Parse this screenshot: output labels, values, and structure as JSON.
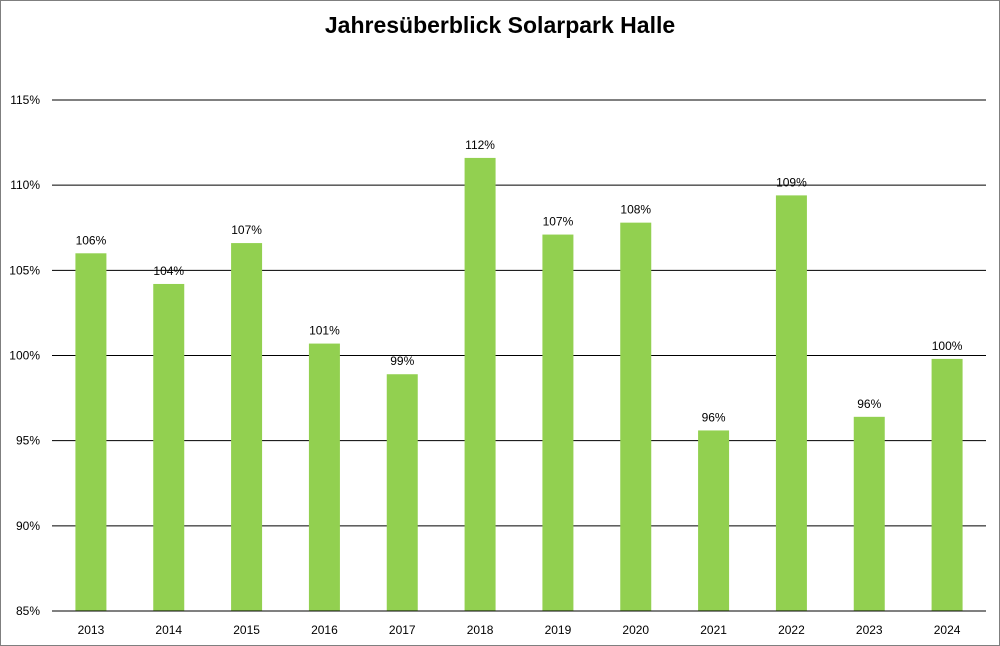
{
  "chart_data": {
    "type": "bar",
    "title": "Jahresüberblick Solarpark Halle",
    "xlabel": "",
    "ylabel": "",
    "categories": [
      "2013",
      "2014",
      "2015",
      "2016",
      "2017",
      "2018",
      "2019",
      "2020",
      "2021",
      "2022",
      "2023",
      "2024"
    ],
    "values": [
      106.0,
      104.2,
      106.6,
      100.7,
      98.9,
      111.6,
      107.1,
      107.8,
      95.6,
      109.4,
      96.4,
      99.8
    ],
    "data_labels": [
      "106%",
      "104%",
      "107%",
      "101%",
      "99%",
      "112%",
      "107%",
      "108%",
      "96%",
      "109%",
      "96%",
      "100%"
    ],
    "ylim": [
      85,
      115
    ],
    "yticks": [
      85,
      90,
      95,
      100,
      105,
      110,
      115
    ],
    "ytick_labels": [
      "85%",
      "90%",
      "95%",
      "100%",
      "105%",
      "110%",
      "115%"
    ],
    "grid": true,
    "legend": "none",
    "colors": {
      "bar": "#92d050",
      "grid": "#000000"
    }
  }
}
